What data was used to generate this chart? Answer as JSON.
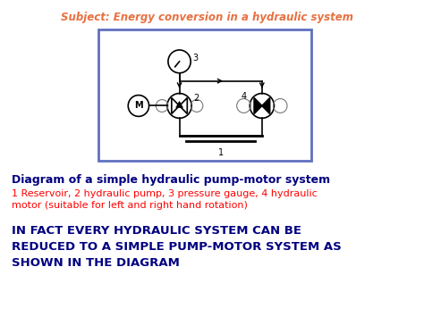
{
  "title": "Subject: Energy conversion in a hydraulic system",
  "title_color": "#E87040",
  "bg_color": "#FFFFFF",
  "diagram_box_color": "#6070C0",
  "text1_bold": "Diagram of a simple hydraulic pump-motor system",
  "text1_color": "#000080",
  "text2": "1 Reservoir, 2 hydraulic pump, 3 pressure gauge, 4 hydraulic\nmotor (suitable for left and right hand rotation)",
  "text2_color": "#FF0000",
  "text3": "IN FACT EVERY HYDRAULIC SYSTEM CAN BE\nREDUCED TO A SIMPLE PUMP-MOTOR SYSTEM AS\nSHOWN IN THE DIAGRAM",
  "text3_color": "#000080"
}
